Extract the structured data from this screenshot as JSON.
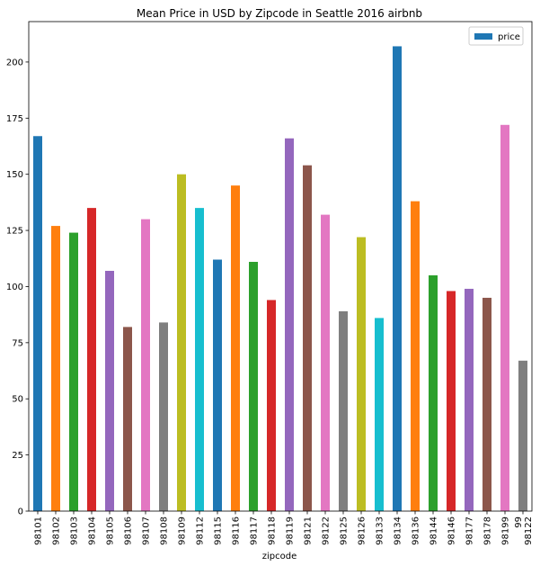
{
  "chart_data": {
    "type": "bar",
    "title": "Mean Price in USD by Zipcode in Seattle 2016 airbnb",
    "xlabel": "zipcode",
    "ylabel": "",
    "ylim": [
      0,
      218
    ],
    "yticks": [
      0,
      25,
      50,
      75,
      100,
      125,
      150,
      175,
      200
    ],
    "grid": false,
    "legend": {
      "position": "top-right",
      "entries": [
        "price"
      ]
    },
    "categories": [
      "98101",
      "98102",
      "98103",
      "98104",
      "98105",
      "98106",
      "98107",
      "98108",
      "98109",
      "98112",
      "98115",
      "98116",
      "98117",
      "98118",
      "98119",
      "98121",
      "98122",
      "98125",
      "98126",
      "98133",
      "98134",
      "98136",
      "98144",
      "98146",
      "98177",
      "98178",
      "98199",
      "99\n98122"
    ],
    "series": [
      {
        "name": "price",
        "values": [
          167,
          127,
          124,
          135,
          107,
          82,
          130,
          84,
          150,
          135,
          112,
          145,
          111,
          94,
          166,
          154,
          132,
          89,
          122,
          86,
          207,
          138,
          105,
          98,
          99,
          95,
          172,
          67
        ]
      }
    ],
    "colors": [
      "#1f77b4",
      "#ff7f0e",
      "#2ca02c",
      "#d62728",
      "#9467bd",
      "#8c564b",
      "#e377c2",
      "#7f7f7f",
      "#bcbd22",
      "#17becf"
    ]
  }
}
